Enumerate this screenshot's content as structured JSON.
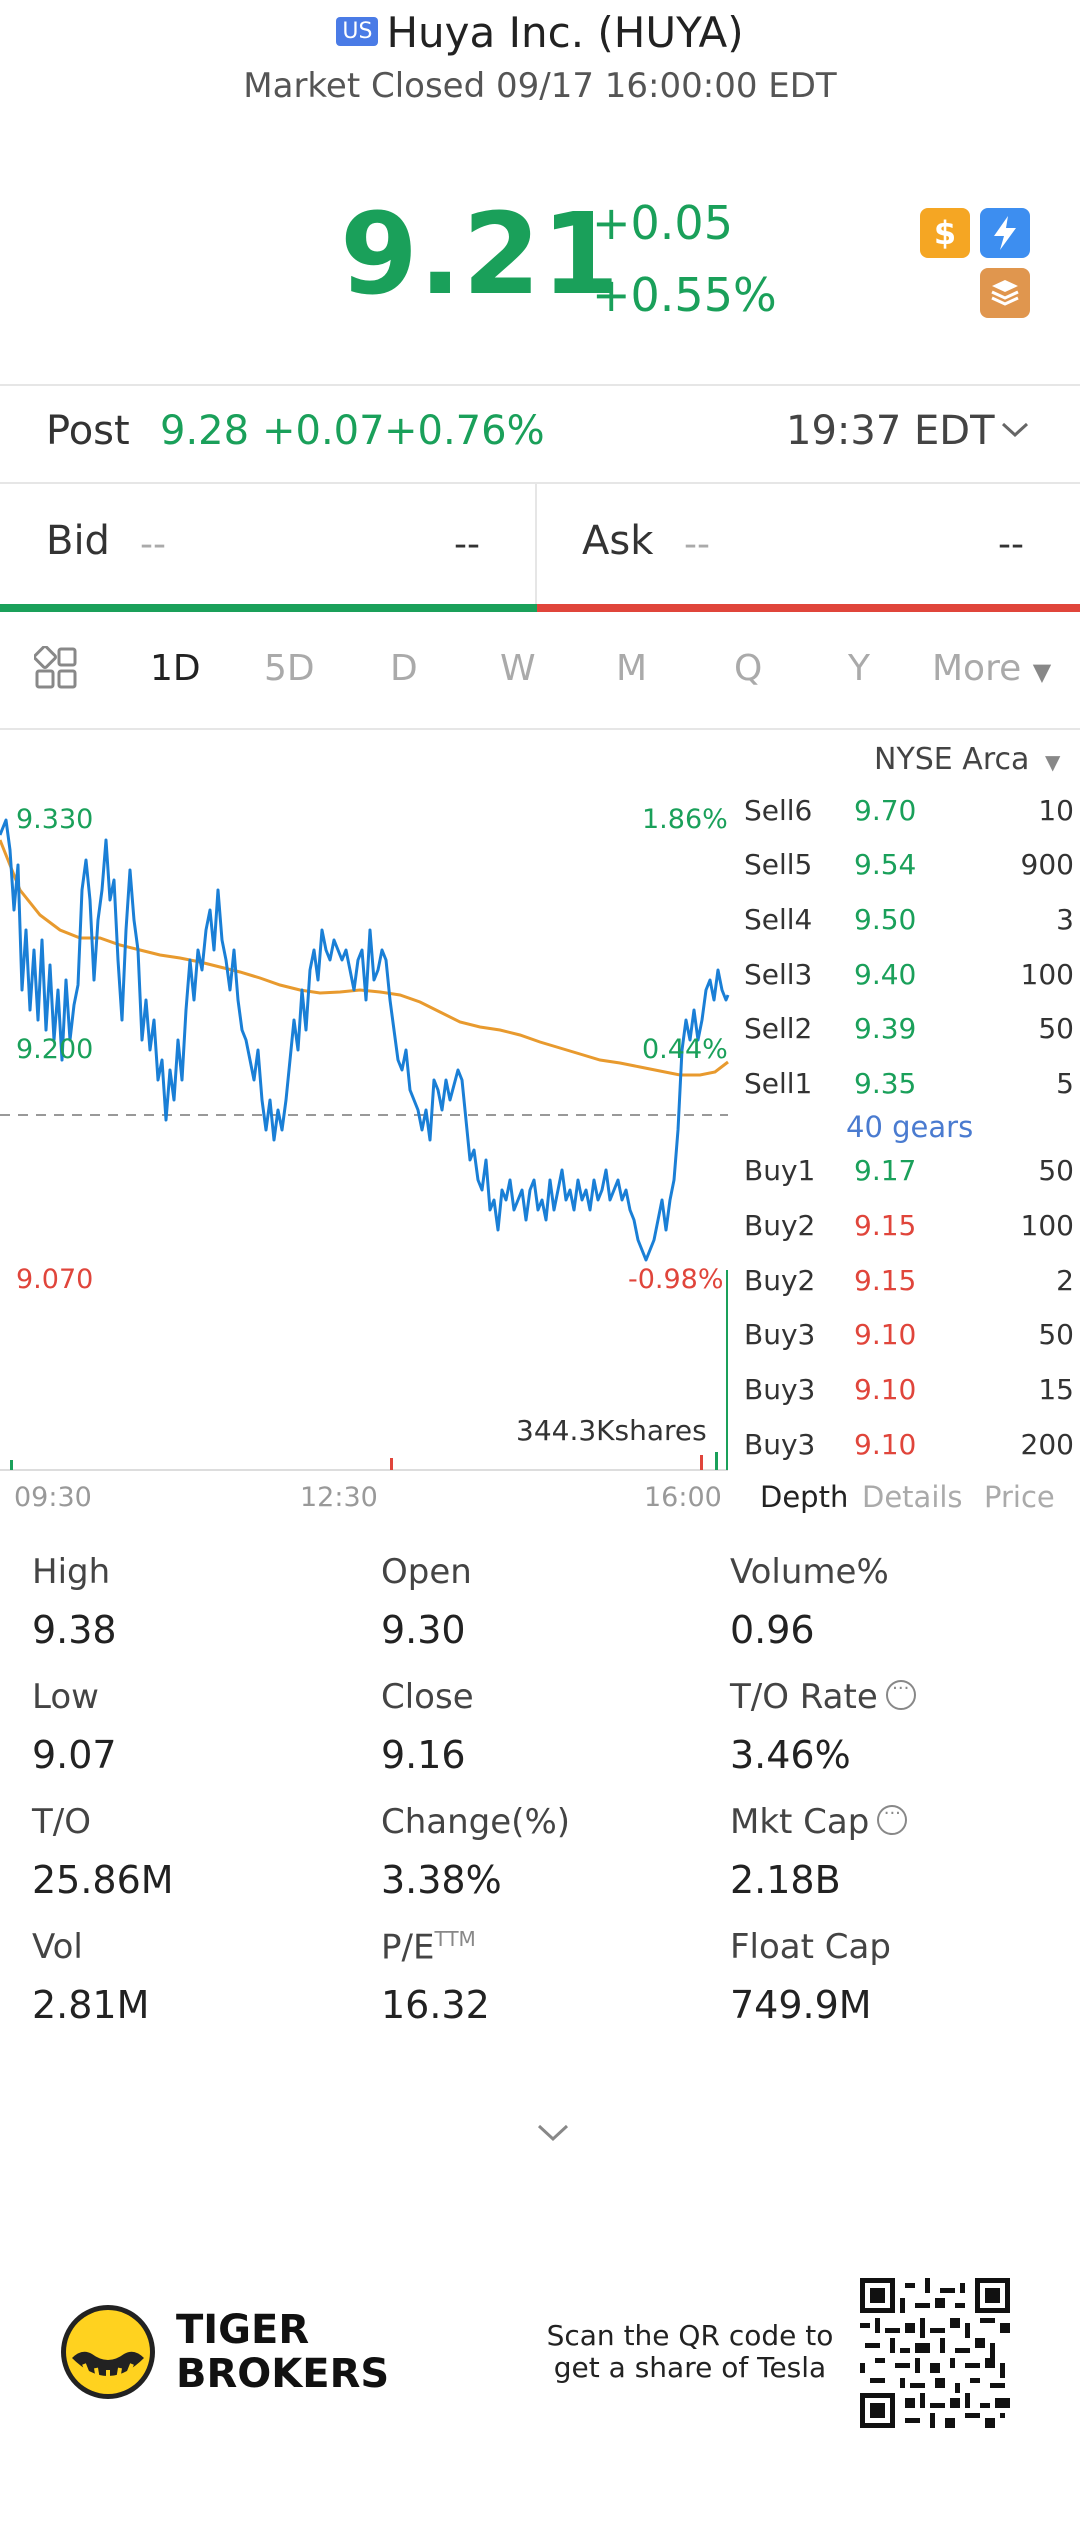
{
  "header": {
    "market_badge": "US",
    "title": "Huya Inc. (HUYA)",
    "subtitle": "Market Closed 09/17 16:00:00 EDT"
  },
  "quote": {
    "price": "9.21",
    "change": "+0.05",
    "change_pct": "+0.55%"
  },
  "post_market": {
    "label": "Post",
    "price": "9.28",
    "change": "+0.07",
    "change_pct": "+0.76%",
    "time": "19:37 EDT"
  },
  "bid_ask": {
    "bid_label": "Bid",
    "bid_value": "--",
    "bid_size": "--",
    "ask_label": "Ask",
    "ask_value": "--",
    "ask_size": "--"
  },
  "tabs": [
    "1D",
    "5D",
    "D",
    "W",
    "M",
    "Q",
    "Y"
  ],
  "more_label": "More",
  "exchange": "NYSE Arca",
  "chart_labels": {
    "high": "9.330",
    "mid": "9.200",
    "low": "9.070",
    "pct_high": "1.86%",
    "pct_mid": "0.44%",
    "pct_low": "-0.98%",
    "volume": "344.3Kshares",
    "time_start": "09:30",
    "time_mid": "12:30",
    "time_end": "16:00"
  },
  "order_book": {
    "sell": [
      {
        "label": "Sell6",
        "price": "9.70",
        "qty": "10"
      },
      {
        "label": "Sell5",
        "price": "9.54",
        "qty": "900"
      },
      {
        "label": "Sell4",
        "price": "9.50",
        "qty": "3"
      },
      {
        "label": "Sell3",
        "price": "9.40",
        "qty": "100"
      },
      {
        "label": "Sell2",
        "price": "9.39",
        "qty": "50"
      },
      {
        "label": "Sell1",
        "price": "9.35",
        "qty": "5"
      }
    ],
    "gears": "40 gears",
    "buy": [
      {
        "label": "Buy1",
        "price": "9.17",
        "qty": "50"
      },
      {
        "label": "Buy2",
        "price": "9.15",
        "qty": "100"
      },
      {
        "label": "Buy2",
        "price": "9.15",
        "qty": "2"
      },
      {
        "label": "Buy3",
        "price": "9.10",
        "qty": "50"
      },
      {
        "label": "Buy3",
        "price": "9.10",
        "qty": "15"
      },
      {
        "label": "Buy3",
        "price": "9.10",
        "qty": "200"
      }
    ],
    "tabs": [
      "Depth",
      "Details",
      "Price"
    ]
  },
  "stats": [
    {
      "label": "High",
      "value": "9.38"
    },
    {
      "label": "Open",
      "value": "9.30"
    },
    {
      "label": "Volume%",
      "value": "0.96"
    },
    {
      "label": "Low",
      "value": "9.07"
    },
    {
      "label": "Close",
      "value": "9.16"
    },
    {
      "label": "T/O Rate",
      "value": "3.46%"
    },
    {
      "label": "T/O",
      "value": "25.86M"
    },
    {
      "label": "Change(%)",
      "value": "3.38%"
    },
    {
      "label": "Mkt Cap",
      "value": "2.18B"
    },
    {
      "label": "Vol",
      "value": "2.81M"
    },
    {
      "label": "P/E",
      "value": "16.32"
    },
    {
      "label": "Float Cap",
      "value": "749.9M"
    }
  ],
  "pe_superscript": "TTM",
  "footer": {
    "brand_line1": "TIGER",
    "brand_line2": "BROKERS",
    "promo_line1": "Scan the QR code to",
    "promo_line2": "get a share of Tesla"
  },
  "colors": {
    "up": "#1aa05a",
    "down": "#e0453b",
    "price_line": "#1a7fd6",
    "avg_line": "#e89a2e",
    "link": "#4a7bd0"
  },
  "icons": [
    "dollar-icon",
    "lightning-icon",
    "layers-icon",
    "grid-icon",
    "chevron-down-icon",
    "more-dots-icon",
    "tiger-logo-icon",
    "qr-code-icon"
  ]
}
